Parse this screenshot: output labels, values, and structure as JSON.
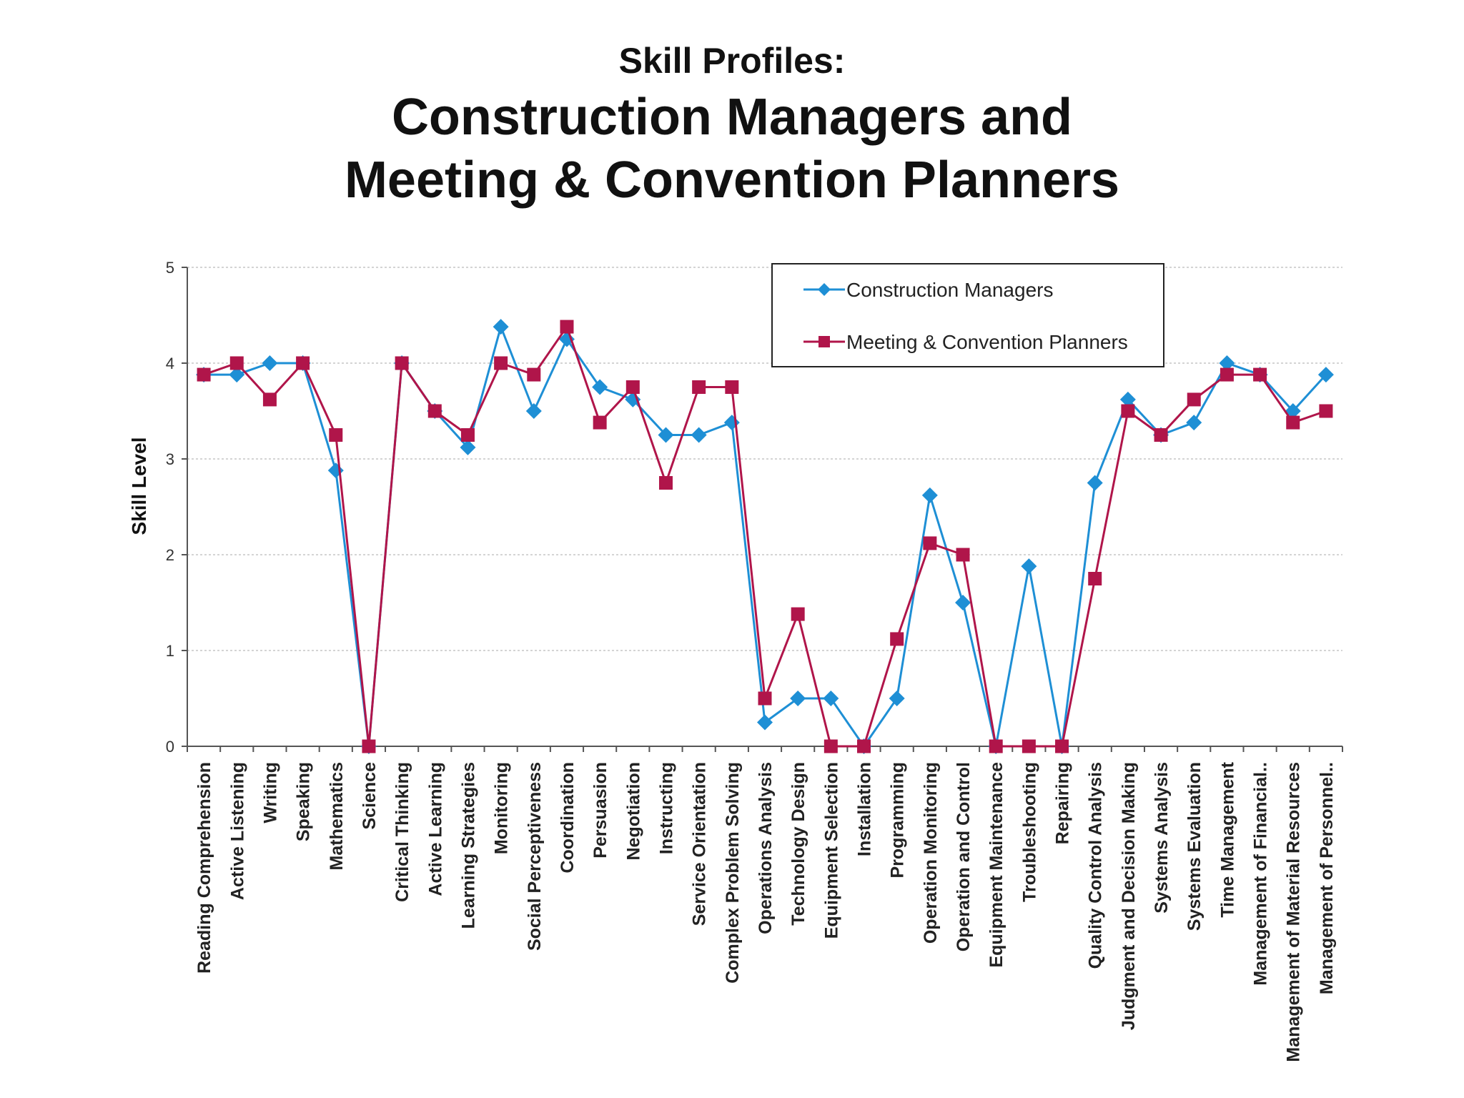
{
  "colors": {
    "construction": "#1e8fd5",
    "meeting": "#b0154a",
    "grid": "#bbbbbb",
    "axis": "#555555"
  },
  "chart_data": {
    "type": "line",
    "subtitle": "Skill Profiles:",
    "title_line1": "Construction Managers and",
    "title_line2": "Meeting & Convention Planners",
    "ylabel": "Skill Level",
    "xlabel": "",
    "ylim": [
      0,
      5
    ],
    "yticks": [
      "0",
      "1",
      "2",
      "3",
      "4",
      "5"
    ],
    "grid": true,
    "legend_position": "top-right",
    "categories": [
      "Reading Comprehension",
      "Active Listening",
      "Writing",
      "Speaking",
      "Mathematics",
      "Science",
      "Critical Thinking",
      "Active Learning",
      "Learning Strategies",
      "Monitoring",
      "Social Perceptiveness",
      "Coordination",
      "Persuasion",
      "Negotiation",
      "Instructing",
      "Service Orientation",
      "Complex Problem Solving",
      "Operations Analysis",
      "Technology Design",
      "Equipment Selection",
      "Installation",
      "Programming",
      "Operation Monitoring",
      "Operation and Control",
      "Equipment Maintenance",
      "Troubleshooting",
      "Repairing",
      "Quality Control Analysis",
      "Judgment and Decision Making",
      "Systems Analysis",
      "Systems Evaluation",
      "Time Management",
      "Management of Financial..",
      "Management of Material Resources",
      "Management of Personnel.."
    ],
    "series": [
      {
        "name": "Construction Managers",
        "marker": "diamond",
        "values": [
          3.88,
          3.88,
          4.0,
          4.0,
          2.88,
          0,
          4.0,
          3.5,
          3.12,
          4.38,
          3.5,
          4.25,
          3.75,
          3.62,
          3.25,
          3.25,
          3.38,
          0.25,
          0.5,
          0.5,
          0,
          0.5,
          2.62,
          1.5,
          0,
          1.88,
          0,
          2.75,
          3.62,
          3.25,
          3.38,
          4.0,
          3.88,
          3.5,
          3.88
        ]
      },
      {
        "name": "Meeting & Convention Planners",
        "marker": "square",
        "values": [
          3.88,
          4.0,
          3.62,
          4.0,
          3.25,
          0,
          4.0,
          3.5,
          3.25,
          4.0,
          3.88,
          4.38,
          3.38,
          3.75,
          2.75,
          3.75,
          3.75,
          0.5,
          1.38,
          0,
          0,
          1.12,
          2.12,
          2.0,
          0,
          0,
          0,
          1.75,
          3.5,
          3.25,
          3.62,
          3.88,
          3.88,
          3.38,
          3.5
        ]
      }
    ]
  }
}
